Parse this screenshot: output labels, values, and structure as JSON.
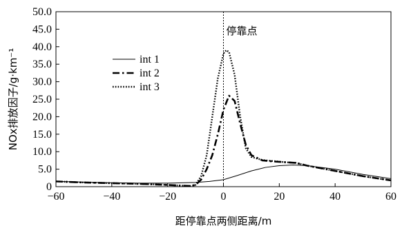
{
  "chart_data": {
    "type": "line",
    "title": "",
    "xlabel": "距停靠点两侧距离/m",
    "ylabel": "NOx排放因子/g·km⁻¹",
    "xlim": [
      -60,
      60
    ],
    "ylim": [
      0,
      50
    ],
    "xticks": [
      -60,
      -40,
      -20,
      0,
      20,
      40,
      60
    ],
    "xtick_labels": [
      "−60",
      "−40",
      "−20",
      "0",
      "20",
      "40",
      "60"
    ],
    "yticks": [
      0,
      5,
      10,
      15,
      20,
      25,
      30,
      35,
      40,
      45,
      50
    ],
    "ytick_labels": [
      "0",
      "5.0",
      "10.0",
      "15.0",
      "20.0",
      "25.0",
      "30.0",
      "35.0",
      "40.0",
      "45.0",
      "50.0"
    ],
    "grid": false,
    "legend": "upper-left",
    "annotation": {
      "text": "停靠点",
      "x": 0
    },
    "series": [
      {
        "name": "int 1",
        "color": "#000000",
        "style": "solid",
        "x": [
          -60,
          -50,
          -40,
          -30,
          -20,
          -10,
          -5,
          0,
          5,
          10,
          15,
          20,
          25,
          30,
          40,
          50,
          60
        ],
        "y": [
          1.5,
          1.3,
          1.1,
          1.0,
          1.0,
          1.2,
          1.5,
          2.0,
          3.2,
          4.5,
          5.5,
          6.0,
          6.2,
          6.0,
          5.0,
          3.5,
          2.3
        ]
      },
      {
        "name": "int 2",
        "color": "#000000",
        "style": "dashdot",
        "x": [
          -60,
          -50,
          -40,
          -30,
          -20,
          -15,
          -12,
          -10,
          -8,
          -6,
          -4,
          -2,
          0,
          2,
          4,
          6,
          8,
          10,
          14,
          18,
          22,
          26,
          30,
          40,
          50,
          60
        ],
        "y": [
          1.5,
          1.2,
          1.0,
          0.8,
          0.5,
          0.3,
          0.2,
          0.5,
          2.0,
          5.0,
          9.0,
          15.0,
          22.0,
          26.0,
          24.5,
          18.0,
          12.0,
          9.0,
          7.5,
          7.2,
          7.0,
          6.8,
          6.0,
          4.5,
          3.0,
          1.8
        ]
      },
      {
        "name": "int 3",
        "color": "#000000",
        "style": "dotted",
        "x": [
          -60,
          -50,
          -40,
          -30,
          -20,
          -15,
          -12,
          -10,
          -8,
          -6,
          -4,
          -2,
          0,
          1,
          2,
          4,
          6,
          8,
          10,
          14,
          18,
          22,
          26,
          30,
          40,
          50,
          60
        ],
        "y": [
          1.5,
          1.2,
          1.0,
          0.8,
          0.5,
          0.3,
          0.2,
          0.5,
          3.0,
          9.0,
          20.0,
          31.0,
          38.0,
          39.0,
          38.5,
          32.0,
          20.0,
          11.0,
          8.5,
          7.6,
          7.3,
          7.0,
          6.8,
          6.0,
          4.5,
          3.0,
          1.8
        ]
      }
    ]
  }
}
